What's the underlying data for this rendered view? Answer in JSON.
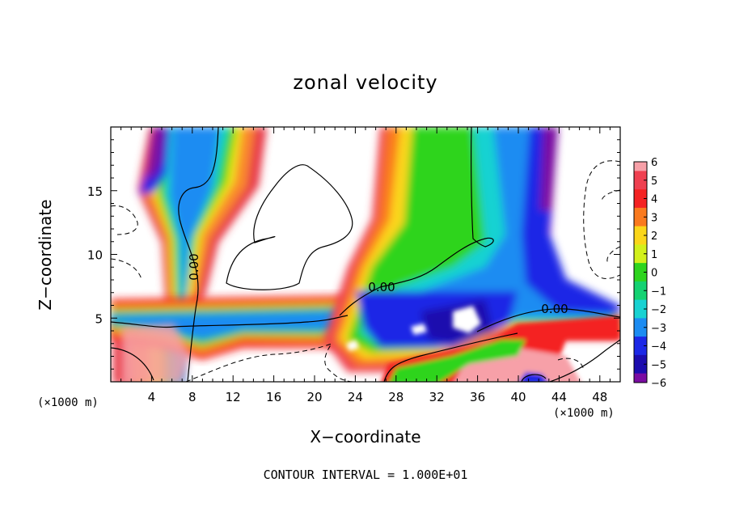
{
  "chart_data": {
    "type": "heatmap",
    "title": "zonal velocity",
    "xlabel": "X−coordinate",
    "ylabel": "Z−coordinate",
    "x_units_left": "(×1000 m)",
    "x_units_right": "(×1000 m)",
    "xlim": [
      0,
      50
    ],
    "ylim": [
      0,
      20
    ],
    "xticks": [
      4,
      8,
      12,
      16,
      20,
      24,
      28,
      32,
      36,
      40,
      44,
      48
    ],
    "yticks": [
      5,
      10,
      15
    ],
    "contour_labels": [
      "0.00",
      "0.00",
      "0.00"
    ],
    "colorbar": {
      "ticks": [
        6,
        5,
        4,
        3,
        2,
        1,
        0,
        -1,
        -2,
        -3,
        -4,
        -5,
        -6
      ],
      "colors": [
        "#f7a0a8",
        "#ef4050",
        "#f42222",
        "#fa7a1e",
        "#fbd61a",
        "#d2f01c",
        "#2ed41e",
        "#14d272",
        "#18d2d2",
        "#1c8cf2",
        "#1c28e6",
        "#1c0cae",
        "#7a0ca2"
      ]
    },
    "footnote": "CONTOUR INTERVAL = 1.000E+01"
  }
}
